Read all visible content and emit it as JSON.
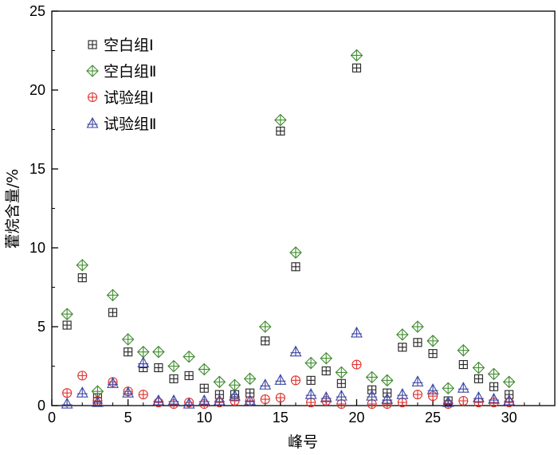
{
  "chart_data": {
    "type": "scatter",
    "title": "",
    "xlabel": "峰号",
    "ylabel": "藿烷含量/%",
    "xlim": [
      0,
      33
    ],
    "ylim": [
      0,
      25
    ],
    "xticks": [
      "0",
      "5",
      "10",
      "15",
      "20",
      "25",
      "30"
    ],
    "yticks": [
      "0",
      "5",
      "10",
      "15",
      "20",
      "25"
    ],
    "grid": false,
    "legend_position": "top-left",
    "series": [
      {
        "name": "空白组Ⅰ",
        "marker": "square",
        "color": "#222222",
        "x": [
          1,
          2,
          3,
          4,
          5,
          6,
          7,
          8,
          9,
          10,
          11,
          12,
          13,
          14,
          15,
          16,
          17,
          18,
          19,
          20,
          21,
          22,
          23,
          24,
          25,
          26,
          27,
          28,
          29,
          30
        ],
        "y": [
          5.1,
          8.1,
          0.5,
          5.9,
          3.4,
          2.4,
          2.4,
          1.7,
          1.9,
          1.1,
          0.7,
          0.7,
          0.8,
          4.1,
          17.4,
          8.8,
          1.6,
          2.2,
          1.4,
          21.4,
          1.0,
          0.8,
          3.7,
          4.0,
          3.3,
          0.3,
          2.6,
          1.7,
          1.2,
          0.7
        ]
      },
      {
        "name": "空白组Ⅱ",
        "marker": "diamond",
        "color": "#3f8a2e",
        "x": [
          1,
          2,
          3,
          4,
          5,
          6,
          7,
          8,
          9,
          10,
          11,
          12,
          13,
          14,
          15,
          16,
          17,
          18,
          19,
          20,
          21,
          22,
          23,
          24,
          25,
          26,
          27,
          28,
          29,
          30
        ],
        "y": [
          5.8,
          8.9,
          0.9,
          7.0,
          4.2,
          3.4,
          3.4,
          2.5,
          3.1,
          2.3,
          1.5,
          1.3,
          1.7,
          5.0,
          18.1,
          9.7,
          2.7,
          3.0,
          2.1,
          22.2,
          1.8,
          1.6,
          4.5,
          5.0,
          4.1,
          1.1,
          3.5,
          2.4,
          2.0,
          1.5
        ]
      },
      {
        "name": "试验组Ⅰ",
        "marker": "circle",
        "color": "#e0302b",
        "x": [
          1,
          2,
          3,
          4,
          5,
          6,
          7,
          8,
          9,
          10,
          11,
          12,
          13,
          14,
          15,
          16,
          17,
          18,
          19,
          20,
          21,
          22,
          23,
          24,
          25,
          26,
          27,
          28,
          29,
          30
        ],
        "y": [
          0.8,
          1.9,
          0.3,
          1.5,
          0.9,
          0.7,
          0.2,
          0.1,
          0.2,
          0.1,
          0.2,
          0.3,
          0.3,
          0.4,
          0.5,
          1.6,
          0.2,
          0.3,
          0.1,
          2.6,
          0.1,
          0.1,
          0.2,
          0.7,
          0.6,
          0.1,
          0.3,
          0.2,
          0.2,
          0.2
        ]
      },
      {
        "name": "试验组Ⅱ",
        "marker": "triangle",
        "color": "#3b46a3",
        "x": [
          1,
          2,
          3,
          4,
          5,
          6,
          7,
          8,
          9,
          10,
          11,
          12,
          13,
          14,
          15,
          16,
          17,
          18,
          19,
          20,
          21,
          22,
          23,
          24,
          25,
          26,
          27,
          28,
          29,
          30
        ],
        "y": [
          0.1,
          0.8,
          0.2,
          1.4,
          0.8,
          2.7,
          0.3,
          0.3,
          0.1,
          0.3,
          0.3,
          0.6,
          0.3,
          1.3,
          1.6,
          3.4,
          0.7,
          0.5,
          0.6,
          4.6,
          0.6,
          0.4,
          0.7,
          1.5,
          1.0,
          0.2,
          1.1,
          0.5,
          0.4,
          0.3
        ]
      }
    ]
  }
}
